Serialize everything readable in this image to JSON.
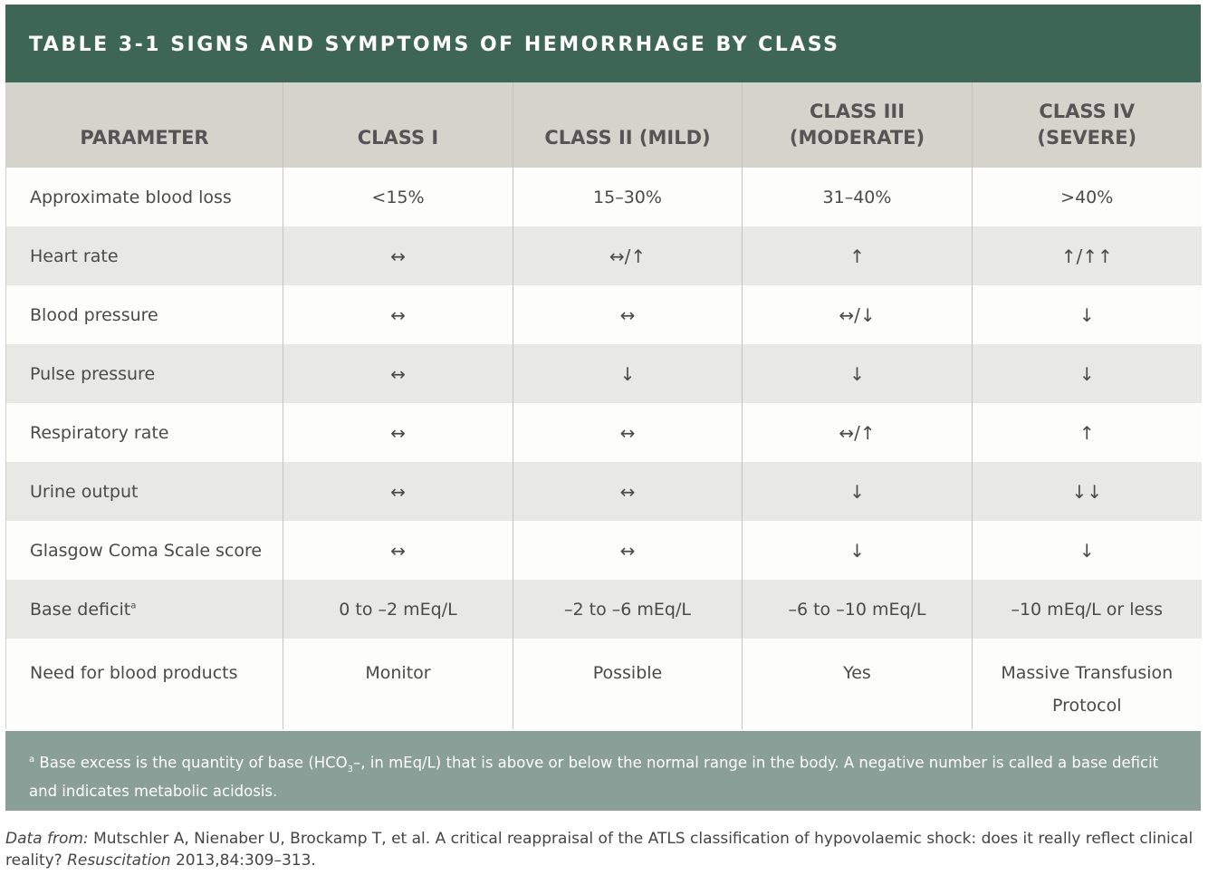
{
  "title": "TABLE 3-1 SIGNS AND SYMPTOMS OF HEMORRHAGE BY CLASS",
  "columns": [
    "PARAMETER",
    "CLASS I",
    "CLASS II (MILD)",
    "CLASS III (MODERATE)",
    "CLASS IV (SEVERE)"
  ],
  "rows": [
    [
      "Approximate blood loss",
      "<15%",
      "15–30%",
      "31–40%",
      ">40%"
    ],
    [
      "Heart rate",
      "↔",
      "↔/↑",
      "↑",
      "↑/↑↑"
    ],
    [
      "Blood pressure",
      "↔",
      "↔",
      "↔/↓",
      "↓"
    ],
    [
      "Pulse pressure",
      "↔",
      "↓",
      "↓",
      "↓"
    ],
    [
      "Respiratory rate",
      "↔",
      "↔",
      "↔/↑",
      "↑"
    ],
    [
      "Urine output",
      "↔",
      "↔",
      "↓",
      "↓↓"
    ],
    [
      "Glasgow Coma Scale score",
      "↔",
      "↔",
      "↓",
      "↓"
    ],
    [
      "Base deficit",
      "0 to –2 mEq/L",
      "–2 to –6 mEq/L",
      "–6 to –10 mEq/L",
      "–10 mEq/L or less"
    ],
    [
      "Need for blood products",
      "Monitor",
      "Possible",
      "Yes",
      "Massive Transfusion Protocol"
    ]
  ],
  "base_deficit_marker": "a",
  "footnote": {
    "marker": "a",
    "text1": " Base excess is the quantity of base (HCO",
    "sub": "3",
    "text2": "–, in mEq/L) that is above or below the normal range in the body. A negative number is called a base deficit and indicates metabolic acidosis."
  },
  "citation": {
    "label": "Data from:",
    "text1": " Mutschler A, Nienaber U, Brockamp T, et al. A critical reappraisal of the ATLS classification of hypovolaemic shock: does it really reflect clinical reality? ",
    "journal": "Resuscitation",
    "text2": " 2013,84:309–313."
  },
  "colors": {
    "title_bg": "#3d6657",
    "header_bg": "#d5d4cc",
    "stripe": "#e8e8e4",
    "footnote_bg": "#8a9f97"
  }
}
